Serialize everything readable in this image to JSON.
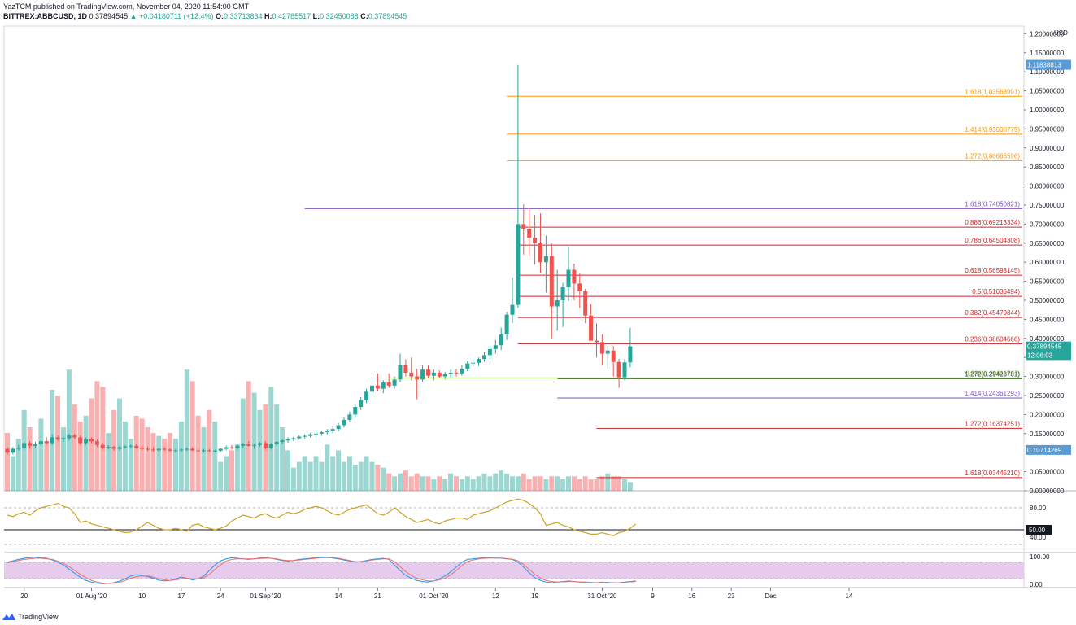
{
  "header": {
    "published": "YazTCM published on TradingView.com, November 04, 2020 11:54:00 GMT",
    "symbol": "BITTREX:ABBCUSD, 1D",
    "last": "0.37894545",
    "change": "+0.04180711 (+12.4%)",
    "o_label": "O:",
    "o": "0.33713834",
    "h_label": "H:",
    "h": "0.42785517",
    "l_label": "L:",
    "l": "0.32450088",
    "c_label": "C:",
    "c": "0.37894545"
  },
  "footer": {
    "brand": "TradingView"
  },
  "colors": {
    "up": "#26a69a",
    "down": "#ef5350",
    "fib_orange": "#ff9800",
    "fib_purple": "#7e57c2",
    "fib_red": "#c0392b",
    "rsi": "#c9a227",
    "stoch_k": "#2196f3",
    "stoch_d": "#e57373",
    "stoch_band": "#e1bee7"
  },
  "chart_data": {
    "type": "candlestick",
    "y_axis_unit": "USD",
    "ylim": [
      0,
      1.22
    ],
    "y_ticks": [
      "1.20000000",
      "1.15000000",
      "1.10000000",
      "1.05000000",
      "1.00000000",
      "0.95000000",
      "0.90000000",
      "0.85000000",
      "0.80000000",
      "0.75000000",
      "0.70000000",
      "0.65000000",
      "0.60000000",
      "0.55000000",
      "0.50000000",
      "0.45000000",
      "0.40000000",
      "0.35000000",
      "0.30000000",
      "0.25000000",
      "0.20000000",
      "0.15000000",
      "0.05000000",
      "0.00000000"
    ],
    "x_ticks": [
      {
        "label": "20",
        "idx": 3
      },
      {
        "label": "01 Aug '20",
        "idx": 15
      },
      {
        "label": "10",
        "idx": 24
      },
      {
        "label": "17",
        "idx": 31
      },
      {
        "label": "24",
        "idx": 38
      },
      {
        "label": "01 Sep '20",
        "idx": 46
      },
      {
        "label": "14",
        "idx": 59
      },
      {
        "label": "21",
        "idx": 66
      },
      {
        "label": "01 Oct '20",
        "idx": 76
      },
      {
        "label": "12",
        "idx": 87
      },
      {
        "label": "19",
        "idx": 94
      },
      {
        "label": "31 Oct '20",
        "idx": 106
      },
      {
        "label": "9",
        "idx": 115
      },
      {
        "label": "16",
        "idx": 122
      },
      {
        "label": "23",
        "idx": 129
      },
      {
        "label": "Dec",
        "idx": 136
      },
      {
        "label": "14",
        "idx": 150
      }
    ],
    "candles": [
      [
        0.11,
        0.115,
        0.095,
        0.1
      ],
      [
        0.1,
        0.115,
        0.095,
        0.11
      ],
      [
        0.11,
        0.12,
        0.105,
        0.112
      ],
      [
        0.112,
        0.13,
        0.108,
        0.125
      ],
      [
        0.125,
        0.13,
        0.11,
        0.118
      ],
      [
        0.118,
        0.128,
        0.112,
        0.122
      ],
      [
        0.122,
        0.135,
        0.118,
        0.13
      ],
      [
        0.13,
        0.14,
        0.12,
        0.125
      ],
      [
        0.125,
        0.148,
        0.12,
        0.14
      ],
      [
        0.14,
        0.145,
        0.13,
        0.135
      ],
      [
        0.135,
        0.142,
        0.128,
        0.138
      ],
      [
        0.138,
        0.15,
        0.132,
        0.145
      ],
      [
        0.145,
        0.15,
        0.135,
        0.14
      ],
      [
        0.14,
        0.145,
        0.12,
        0.125
      ],
      [
        0.125,
        0.14,
        0.12,
        0.135
      ],
      [
        0.135,
        0.14,
        0.125,
        0.13
      ],
      [
        0.13,
        0.135,
        0.115,
        0.12
      ],
      [
        0.12,
        0.125,
        0.108,
        0.112
      ],
      [
        0.112,
        0.12,
        0.108,
        0.115
      ],
      [
        0.115,
        0.118,
        0.105,
        0.11
      ],
      [
        0.11,
        0.118,
        0.105,
        0.114
      ],
      [
        0.114,
        0.12,
        0.11,
        0.116
      ],
      [
        0.116,
        0.122,
        0.112,
        0.118
      ],
      [
        0.118,
        0.124,
        0.11,
        0.112
      ],
      [
        0.112,
        0.118,
        0.106,
        0.11
      ],
      [
        0.11,
        0.116,
        0.104,
        0.108
      ],
      [
        0.108,
        0.114,
        0.102,
        0.106
      ],
      [
        0.106,
        0.112,
        0.1,
        0.11
      ],
      [
        0.11,
        0.115,
        0.104,
        0.108
      ],
      [
        0.108,
        0.112,
        0.102,
        0.105
      ],
      [
        0.105,
        0.11,
        0.1,
        0.106
      ],
      [
        0.106,
        0.112,
        0.102,
        0.108
      ],
      [
        0.108,
        0.114,
        0.104,
        0.11
      ],
      [
        0.11,
        0.115,
        0.104,
        0.106
      ],
      [
        0.106,
        0.11,
        0.1,
        0.104
      ],
      [
        0.104,
        0.11,
        0.1,
        0.106
      ],
      [
        0.106,
        0.11,
        0.102,
        0.104
      ],
      [
        0.104,
        0.108,
        0.1,
        0.105
      ],
      [
        0.105,
        0.112,
        0.102,
        0.11
      ],
      [
        0.11,
        0.118,
        0.106,
        0.114
      ],
      [
        0.114,
        0.12,
        0.108,
        0.112
      ],
      [
        0.112,
        0.122,
        0.108,
        0.118
      ],
      [
        0.118,
        0.125,
        0.112,
        0.122
      ],
      [
        0.122,
        0.13,
        0.116,
        0.118
      ],
      [
        0.118,
        0.124,
        0.11,
        0.12
      ],
      [
        0.12,
        0.128,
        0.115,
        0.125
      ],
      [
        0.125,
        0.13,
        0.108,
        0.112
      ],
      [
        0.112,
        0.125,
        0.108,
        0.122
      ],
      [
        0.122,
        0.13,
        0.118,
        0.128
      ],
      [
        0.128,
        0.135,
        0.122,
        0.132
      ],
      [
        0.132,
        0.14,
        0.126,
        0.136
      ],
      [
        0.136,
        0.142,
        0.13,
        0.138
      ],
      [
        0.138,
        0.146,
        0.134,
        0.142
      ],
      [
        0.142,
        0.148,
        0.136,
        0.144
      ],
      [
        0.144,
        0.152,
        0.14,
        0.148
      ],
      [
        0.148,
        0.156,
        0.142,
        0.15
      ],
      [
        0.15,
        0.158,
        0.144,
        0.154
      ],
      [
        0.154,
        0.162,
        0.148,
        0.158
      ],
      [
        0.158,
        0.17,
        0.15,
        0.162
      ],
      [
        0.162,
        0.178,
        0.156,
        0.172
      ],
      [
        0.172,
        0.192,
        0.166,
        0.186
      ],
      [
        0.186,
        0.208,
        0.18,
        0.2
      ],
      [
        0.2,
        0.226,
        0.192,
        0.22
      ],
      [
        0.22,
        0.246,
        0.212,
        0.238
      ],
      [
        0.238,
        0.268,
        0.23,
        0.26
      ],
      [
        0.26,
        0.3,
        0.25,
        0.276
      ],
      [
        0.276,
        0.308,
        0.262,
        0.268
      ],
      [
        0.268,
        0.29,
        0.256,
        0.284
      ],
      [
        0.284,
        0.308,
        0.27,
        0.276
      ],
      [
        0.276,
        0.3,
        0.268,
        0.292
      ],
      [
        0.292,
        0.36,
        0.286,
        0.33
      ],
      [
        0.33,
        0.345,
        0.3,
        0.31
      ],
      [
        0.31,
        0.35,
        0.29,
        0.3
      ],
      [
        0.3,
        0.32,
        0.24,
        0.292
      ],
      [
        0.292,
        0.33,
        0.286,
        0.318
      ],
      [
        0.318,
        0.33,
        0.296,
        0.302
      ],
      [
        0.302,
        0.318,
        0.29,
        0.31
      ],
      [
        0.31,
        0.316,
        0.296,
        0.3
      ],
      [
        0.3,
        0.312,
        0.292,
        0.306
      ],
      [
        0.306,
        0.318,
        0.298,
        0.31
      ],
      [
        0.31,
        0.32,
        0.3,
        0.308
      ],
      [
        0.308,
        0.33,
        0.302,
        0.32
      ],
      [
        0.32,
        0.34,
        0.314,
        0.334
      ],
      [
        0.334,
        0.344,
        0.326,
        0.336
      ],
      [
        0.336,
        0.35,
        0.328,
        0.346
      ],
      [
        0.346,
        0.364,
        0.338,
        0.356
      ],
      [
        0.356,
        0.38,
        0.346,
        0.372
      ],
      [
        0.372,
        0.396,
        0.36,
        0.382
      ],
      [
        0.382,
        0.428,
        0.37,
        0.41
      ],
      [
        0.41,
        0.47,
        0.396,
        0.462
      ],
      [
        0.462,
        0.56,
        0.44,
        0.488
      ],
      [
        0.488,
        1.118,
        0.48,
        0.7
      ],
      [
        0.7,
        0.752,
        0.62,
        0.688
      ],
      [
        0.688,
        0.74,
        0.616,
        0.664
      ],
      [
        0.664,
        0.724,
        0.594,
        0.65
      ],
      [
        0.65,
        0.728,
        0.572,
        0.6
      ],
      [
        0.6,
        0.67,
        0.52,
        0.616
      ],
      [
        0.616,
        0.65,
        0.4,
        0.484
      ],
      [
        0.484,
        0.58,
        0.42,
        0.5
      ],
      [
        0.5,
        0.546,
        0.43,
        0.534
      ],
      [
        0.534,
        0.64,
        0.498,
        0.58
      ],
      [
        0.58,
        0.596,
        0.5,
        0.544
      ],
      [
        0.544,
        0.57,
        0.48,
        0.524
      ],
      [
        0.524,
        0.53,
        0.44,
        0.46
      ],
      [
        0.46,
        0.49,
        0.4,
        0.394
      ],
      [
        0.394,
        0.44,
        0.35,
        0.39
      ],
      [
        0.39,
        0.41,
        0.33,
        0.36
      ],
      [
        0.36,
        0.38,
        0.32,
        0.368
      ],
      [
        0.368,
        0.38,
        0.3,
        0.338
      ],
      [
        0.338,
        0.346,
        0.27,
        0.298
      ],
      [
        0.298,
        0.345,
        0.29,
        0.337
      ],
      [
        0.33713834,
        0.42785517,
        0.32450088,
        0.37894545
      ]
    ],
    "volume": [
      0.2,
      0.12,
      0.18,
      0.28,
      0.22,
      0.16,
      0.25,
      0.17,
      0.35,
      0.33,
      0.22,
      0.42,
      0.3,
      0.24,
      0.26,
      0.32,
      0.38,
      0.36,
      0.2,
      0.28,
      0.32,
      0.24,
      0.18,
      0.26,
      0.25,
      0.22,
      0.2,
      0.19,
      0.18,
      0.2,
      0.18,
      0.24,
      0.42,
      0.38,
      0.26,
      0.22,
      0.28,
      0.24,
      0.1,
      0.12,
      0.14,
      0.16,
      0.32,
      0.38,
      0.34,
      0.28,
      0.3,
      0.36,
      0.3,
      0.22,
      0.14,
      0.08,
      0.1,
      0.12,
      0.1,
      0.12,
      0.1,
      0.16,
      0.12,
      0.14,
      0.1,
      0.12,
      0.09,
      0.1,
      0.12,
      0.1,
      0.09,
      0.08,
      0.06,
      0.05,
      0.06,
      0.07,
      0.05,
      0.06,
      0.05,
      0.05,
      0.04,
      0.05,
      0.04,
      0.06,
      0.05,
      0.04,
      0.05,
      0.04,
      0.05,
      0.06,
      0.05,
      0.06,
      0.07,
      0.06,
      0.05,
      0.05,
      0.06,
      0.04,
      0.05,
      0.05,
      0.04,
      0.05,
      0.05,
      0.04,
      0.05,
      0.05,
      0.04,
      0.05,
      0.04,
      0.04,
      0.05,
      0.06,
      0.05,
      0.05,
      0.04,
      0.03
    ],
    "fib_levels": [
      {
        "ratio": "1.618",
        "value": "1.03563991",
        "y": 1.0356,
        "color": "fib_orange",
        "from_idx": 89
      },
      {
        "ratio": "1.414",
        "value": "0.93600775",
        "y": 0.936,
        "color": "fib_orange",
        "from_idx": 89
      },
      {
        "ratio": "1.272",
        "value": "0.86665596",
        "y": 0.8667,
        "color": "fib_orange",
        "from_idx": 89
      },
      {
        "ratio": "1.618",
        "value": "0.74050821",
        "y": 0.7405,
        "color": "fib_purple",
        "from_idx": 53
      },
      {
        "ratio": "0.886",
        "value": "0.69213334",
        "y": 0.6921,
        "color": "fib_red",
        "from_idx": 91
      },
      {
        "ratio": "0.786",
        "value": "0.64504308",
        "y": 0.645,
        "color": "fib_red",
        "from_idx": 91
      },
      {
        "ratio": "0.618",
        "value": "0.56593145",
        "y": 0.5659,
        "color": "fib_red",
        "from_idx": 91
      },
      {
        "ratio": "0.5",
        "value": "0.51036494",
        "y": 0.5104,
        "color": "fib_red",
        "from_idx": 91
      },
      {
        "ratio": "0.382",
        "value": "0.45479844",
        "y": 0.4548,
        "color": "fib_red",
        "from_idx": 91
      },
      {
        "ratio": "0.236",
        "value": "0.38604666",
        "y": 0.386,
        "color": "fib_red",
        "from_idx": 91
      },
      {
        "ratio": "0.886",
        "value": "0.29611767",
        "y": 0.2961,
        "color": "fib_olive",
        "from_idx": 68
      },
      {
        "ratio": "1.272",
        "value": "0.29423781",
        "y": 0.2942,
        "color": "fib_dark",
        "from_idx": 98
      },
      {
        "ratio": "1.414",
        "value": "0.24361293",
        "y": 0.2436,
        "color": "fib_purple",
        "from_idx": 98
      },
      {
        "ratio": "1.272",
        "value": "0.16374251",
        "y": 0.1637,
        "color": "fib_red",
        "from_idx": 105
      },
      {
        "ratio": "1.618",
        "value": "0.03445210",
        "y": 0.0345,
        "color": "fib_red",
        "from_idx": 105
      }
    ],
    "price_tags": [
      {
        "text": "1.11838813",
        "y": 1.1184,
        "style": "blue"
      },
      {
        "text": "0.37894545",
        "y": 0.3789,
        "style": "teal"
      },
      {
        "text": "12:06:03",
        "y": 0.356,
        "style": "teal"
      },
      {
        "text": "0.10714269",
        "y": 0.1071,
        "style": "blue"
      }
    ],
    "rsi": {
      "ticks": [
        "80.00",
        "40.00"
      ],
      "level_tag": "50.00",
      "values": [
        70,
        68,
        72,
        74,
        70,
        76,
        80,
        82,
        84,
        86,
        82,
        80,
        72,
        60,
        62,
        58,
        56,
        54,
        52,
        50,
        48,
        46,
        47,
        50,
        55,
        60,
        56,
        52,
        50,
        50,
        52,
        50,
        48,
        56,
        58,
        54,
        52,
        50,
        52,
        55,
        62,
        66,
        70,
        68,
        66,
        70,
        72,
        68,
        66,
        70,
        74,
        72,
        74,
        78,
        80,
        82,
        80,
        76,
        72,
        70,
        74,
        78,
        80,
        82,
        84,
        78,
        72,
        70,
        74,
        80,
        74,
        68,
        64,
        60,
        62,
        64,
        60,
        58,
        62,
        64,
        66,
        66,
        64,
        70,
        72,
        74,
        76,
        80,
        84,
        88,
        90,
        92,
        90,
        86,
        80,
        72,
        56,
        58,
        60,
        56,
        54,
        50,
        48,
        46,
        44,
        44,
        46,
        44,
        42,
        46,
        48,
        52,
        58
      ]
    },
    "stoch": {
      "ticks": [
        "100.00",
        "0.00"
      ],
      "k": [
        80,
        85,
        90,
        94,
        96,
        98,
        96,
        94,
        88,
        80,
        70,
        55,
        40,
        25,
        14,
        8,
        4,
        2,
        3,
        6,
        12,
        20,
        30,
        35,
        32,
        28,
        22,
        15,
        12,
        14,
        20,
        26,
        22,
        16,
        20,
        30,
        50,
        70,
        85,
        92,
        96,
        94,
        92,
        90,
        92,
        95,
        96,
        94,
        90,
        86,
        84,
        86,
        90,
        92,
        94,
        96,
        98,
        97,
        95,
        92,
        88,
        84,
        80,
        82,
        86,
        90,
        92,
        94,
        90,
        70,
        50,
        32,
        22,
        14,
        10,
        8,
        12,
        20,
        30,
        45,
        62,
        80,
        90,
        92,
        94,
        96,
        96,
        95,
        94,
        92,
        90,
        80,
        62,
        42,
        24,
        14,
        8,
        6,
        8,
        10,
        12,
        10,
        8,
        7,
        6,
        6,
        8,
        6,
        5,
        6,
        8,
        10,
        12
      ],
      "d": [
        78,
        82,
        86,
        90,
        92,
        94,
        94,
        92,
        90,
        84,
        76,
        64,
        50,
        36,
        24,
        14,
        8,
        4,
        3,
        4,
        8,
        14,
        22,
        28,
        30,
        30,
        26,
        20,
        16,
        14,
        16,
        20,
        22,
        20,
        20,
        24,
        36,
        54,
        70,
        84,
        90,
        92,
        92,
        92,
        92,
        93,
        94,
        94,
        92,
        88,
        86,
        86,
        88,
        90,
        92,
        94,
        96,
        96,
        96,
        94,
        90,
        86,
        82,
        82,
        84,
        88,
        90,
        92,
        92,
        82,
        64,
        46,
        32,
        22,
        16,
        12,
        12,
        16,
        22,
        34,
        50,
        68,
        82,
        88,
        92,
        94,
        95,
        95,
        95,
        93,
        91,
        85,
        72,
        54,
        36,
        22,
        14,
        10,
        8,
        9,
        10,
        10,
        9,
        8,
        7,
        6,
        7,
        7,
        6,
        6,
        7,
        9,
        10
      ]
    }
  }
}
